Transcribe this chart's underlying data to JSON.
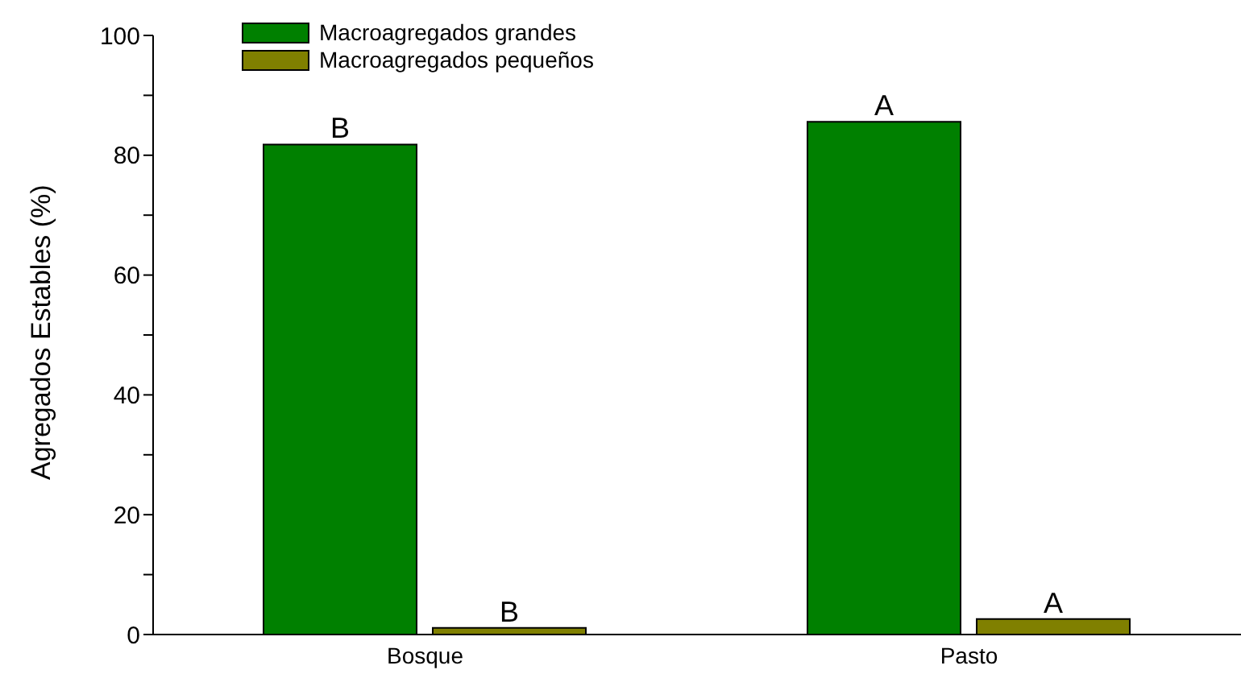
{
  "chart_data": {
    "type": "bar",
    "ylabel": "Agregados Estables (%)",
    "categories": [
      "Bosque",
      "Pasto"
    ],
    "series": [
      {
        "name": "Macroagregados grandes",
        "color": "#008000",
        "values": [
          81.8,
          85.6
        ]
      },
      {
        "name": "Macroagregados pequeños",
        "color": "#808000",
        "values": [
          1.1,
          2.6
        ]
      }
    ],
    "ylim": [
      0,
      100
    ],
    "yticks": [
      0,
      {
        "value": 10,
        "label": null
      },
      20,
      {
        "value": 30,
        "label": null
      },
      40,
      {
        "value": 50,
        "label": null
      },
      60,
      {
        "value": 70,
        "label": null
      },
      80,
      {
        "value": 90,
        "label": null
      },
      100
    ],
    "legend": "top left",
    "grid": false,
    "annotations": [
      "B",
      "B",
      "A",
      "A"
    ]
  }
}
